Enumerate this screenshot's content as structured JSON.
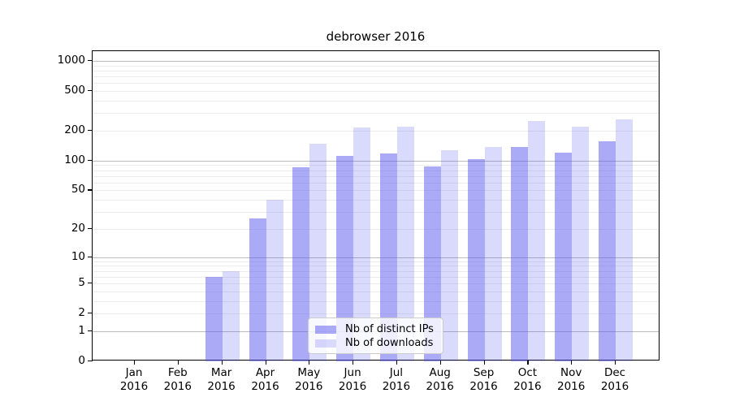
{
  "title": "debrowser 2016",
  "chart_data": {
    "type": "bar",
    "title": "debrowser 2016",
    "xlabel": "",
    "ylabel": "",
    "y_scale": "log1p",
    "y_max": 1251,
    "categories": [
      "Jan",
      "Feb",
      "Mar",
      "Apr",
      "May",
      "Jun",
      "Jul",
      "Aug",
      "Sep",
      "Oct",
      "Nov",
      "Dec"
    ],
    "category_year": "2016",
    "series": [
      {
        "name": "Nb of distinct IPs",
        "color": "rgba(85,85,240,0.50)",
        "values": [
          0,
          0,
          6,
          26,
          86,
          112,
          118,
          88,
          104,
          138,
          120,
          156
        ]
      },
      {
        "name": "Nb of downloads",
        "color": "rgba(85,85,240,0.22)",
        "values": [
          0,
          0,
          7,
          40,
          148,
          215,
          218,
          127,
          137,
          252,
          220,
          258
        ]
      }
    ],
    "y_ticks": [
      1000,
      500,
      200,
      100,
      50,
      20,
      10,
      5,
      2,
      1,
      0
    ],
    "grid": {
      "major": [
        1,
        10,
        100,
        1000
      ],
      "minor": [
        2,
        3,
        4,
        5,
        6,
        7,
        8,
        9,
        20,
        30,
        40,
        50,
        60,
        70,
        80,
        90,
        200,
        300,
        400,
        500,
        600,
        700,
        800,
        900
      ]
    },
    "legend_position": "lower center"
  }
}
